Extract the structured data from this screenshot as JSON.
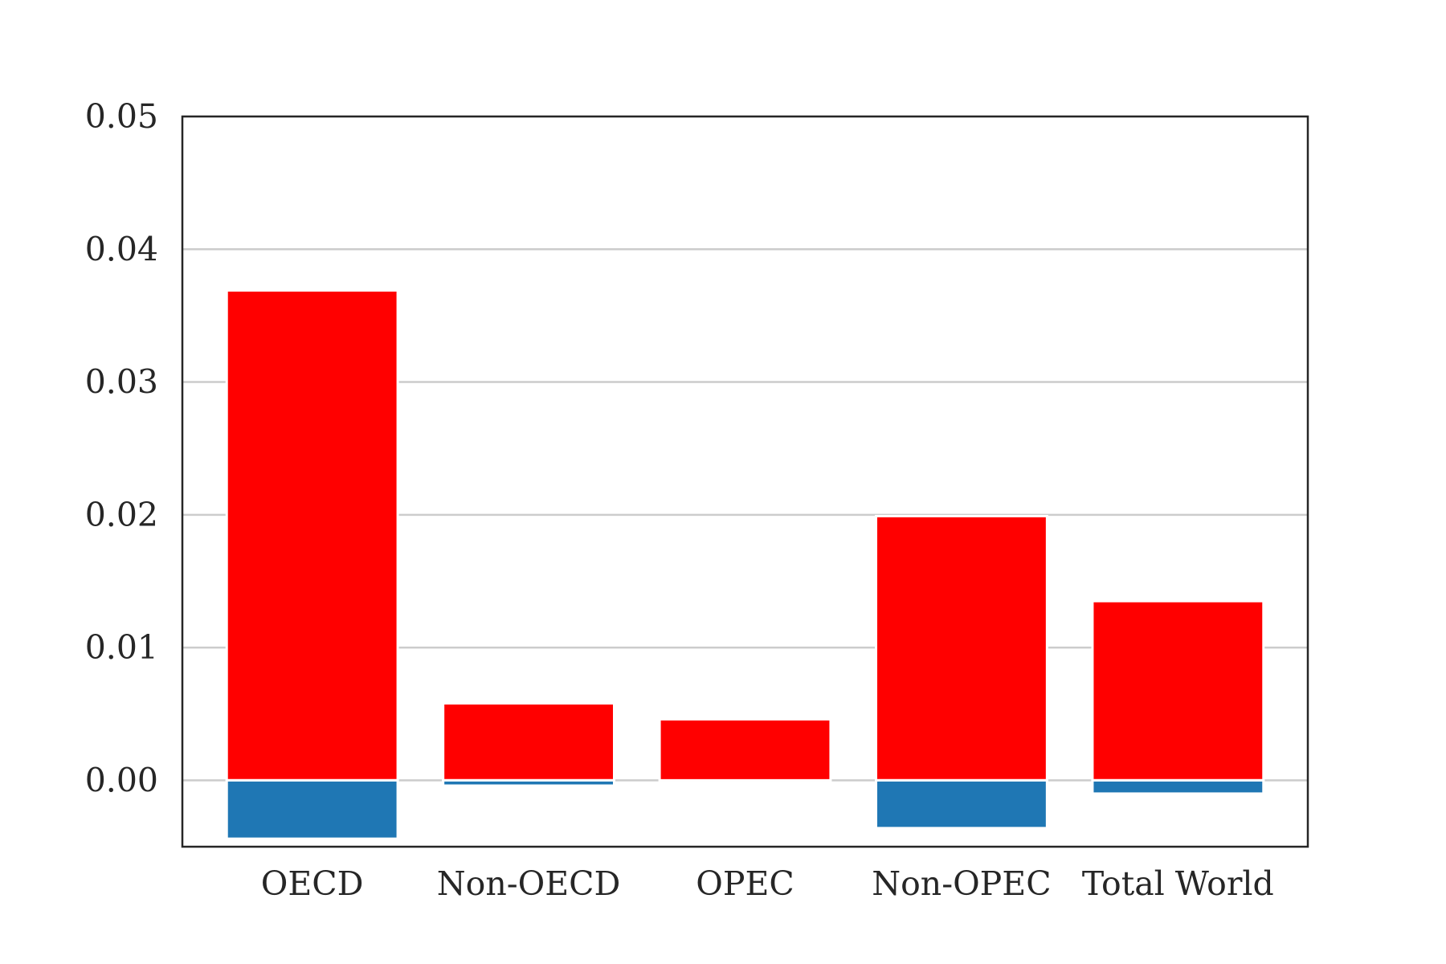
{
  "chart_data": {
    "type": "bar",
    "categories": [
      "OECD",
      "Non-OECD",
      "OPEC",
      "Non-OPEC",
      "Total World"
    ],
    "series": [
      {
        "values": [
          0.0369,
          0.0058,
          0.0046,
          0.0199,
          0.0135
        ],
        "color": "#ff0000"
      },
      {
        "values": [
          -0.0044,
          -0.0004,
          0.0,
          -0.0036,
          -0.001
        ],
        "color": "#1f77b4"
      }
    ],
    "ylim": [
      -0.005,
      0.05
    ],
    "yticks": [
      0.0,
      0.01,
      0.02,
      0.03,
      0.04,
      0.05
    ],
    "ytick_labels": [
      "0.00",
      "0.01",
      "0.02",
      "0.03",
      "0.04",
      "0.05"
    ],
    "grid": "horizontal",
    "grid_color": "#cccccc",
    "axis_color": "#262626",
    "title": "",
    "xlabel": "",
    "ylabel": ""
  }
}
